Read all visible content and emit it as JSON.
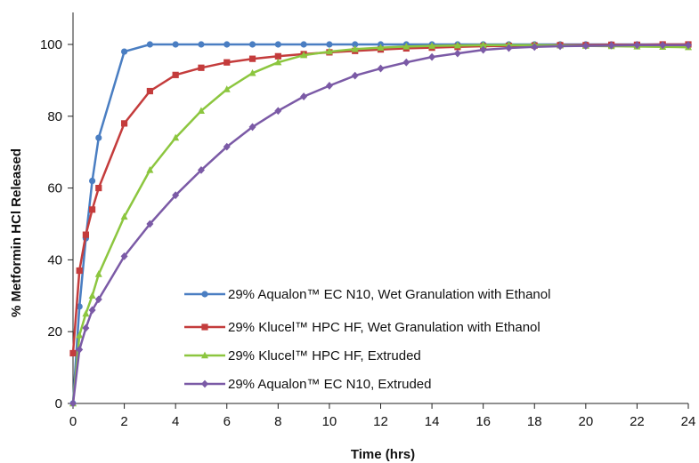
{
  "chart_data": {
    "type": "line",
    "title": "",
    "xlabel": "Time (hrs)",
    "ylabel": "% Metformin HCl Released",
    "xlim": [
      0,
      24
    ],
    "ylim": [
      0,
      100
    ],
    "xticks": [
      0,
      2,
      4,
      6,
      8,
      10,
      12,
      14,
      16,
      18,
      20,
      22,
      24
    ],
    "yticks": [
      0,
      20,
      40,
      60,
      80,
      100
    ],
    "grid": false,
    "legend_position": "bottom-right",
    "series": [
      {
        "name": "29% Aqualon™ EC N10, Wet Granulation with Ethanol",
        "color": "#4A7EC2",
        "marker": "circle",
        "x": [
          0,
          0.25,
          0.5,
          0.75,
          1,
          2,
          3,
          4,
          5,
          6,
          7,
          8,
          9,
          10,
          11,
          12,
          13,
          14,
          15,
          16,
          17,
          18,
          19,
          20,
          21,
          22,
          23,
          24
        ],
        "y": [
          0,
          27,
          46,
          62,
          74,
          98,
          100,
          100,
          100,
          100,
          100,
          100,
          100,
          100,
          100,
          100,
          100,
          100,
          100,
          100,
          100,
          100,
          100,
          100,
          100,
          100,
          100,
          100
        ]
      },
      {
        "name": "29% Klucel™ HPC HF, Wet Granulation with Ethanol",
        "color": "#C43C3C",
        "marker": "square",
        "x": [
          0,
          0.25,
          0.5,
          0.75,
          1,
          2,
          3,
          4,
          5,
          6,
          7,
          8,
          9,
          10,
          11,
          12,
          13,
          14,
          15,
          16,
          17,
          18,
          19,
          20,
          21,
          22,
          23,
          24
        ],
        "y": [
          14,
          37,
          47,
          54,
          60,
          78,
          87,
          91.5,
          93.5,
          95,
          96,
          96.7,
          97.3,
          97.8,
          98.2,
          98.6,
          98.9,
          99.1,
          99.3,
          99.5,
          99.6,
          99.7,
          99.8,
          99.8,
          99.9,
          99.9,
          100,
          100
        ]
      },
      {
        "name": "29% Klucel™ HPC HF, Extruded",
        "color": "#8CC63F",
        "marker": "triangle",
        "x": [
          0,
          0.25,
          0.5,
          0.75,
          1,
          2,
          3,
          4,
          5,
          6,
          7,
          8,
          9,
          10,
          11,
          12,
          13,
          14,
          15,
          16,
          17,
          18,
          19,
          20,
          21,
          22,
          23,
          24
        ],
        "y": [
          0,
          19,
          25,
          30,
          36,
          52,
          65,
          74,
          81.5,
          87.5,
          92,
          95,
          97,
          98,
          98.7,
          99.1,
          99.4,
          99.6,
          99.7,
          99.8,
          99.8,
          99.8,
          99.7,
          99.6,
          99.5,
          99.4,
          99.3,
          99.2
        ]
      },
      {
        "name": "29% Aqualon™ EC N10, Extruded",
        "color": "#7B5AA6",
        "marker": "diamond",
        "x": [
          0,
          0.25,
          0.5,
          0.75,
          1,
          2,
          3,
          4,
          5,
          6,
          7,
          8,
          9,
          10,
          11,
          12,
          13,
          14,
          15,
          16,
          17,
          18,
          19,
          20,
          21,
          22,
          23,
          24
        ],
        "y": [
          0,
          15,
          21,
          26,
          29,
          41,
          50,
          58,
          65,
          71.5,
          77,
          81.5,
          85.5,
          88.5,
          91.3,
          93.3,
          95,
          96.5,
          97.5,
          98.5,
          99,
          99.3,
          99.5,
          99.6,
          99.7,
          99.8,
          99.8,
          99.8
        ]
      }
    ]
  }
}
